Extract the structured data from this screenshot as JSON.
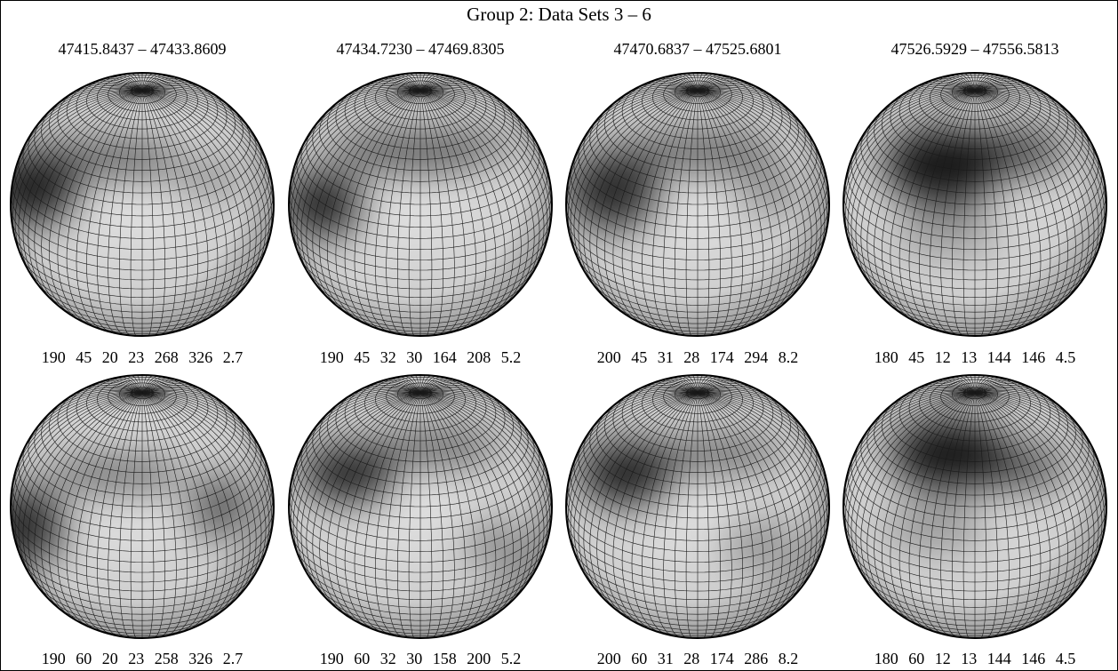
{
  "title": "Group 2: Data Sets 3 – 6",
  "headers": [
    "47415.8437 – 47433.8609",
    "47434.7230 – 47469.8305",
    "47470.6837 – 47525.6801",
    "47526.5929 – 47556.5813"
  ],
  "captions": [
    [
      "190 45 20 23 268 326 2.7",
      "190 45 32 30 164 208 5.2",
      "200 45 31 28 174 294 8.2",
      "180 45 12 13 144 146 4.5"
    ],
    [
      "190 60 20 23 258 326 2.7",
      "190 60 32 30 158 200 5.2",
      "200 60 31 28 174 286 8.2",
      "180 60 12 13 144 146 4.5"
    ]
  ]
}
